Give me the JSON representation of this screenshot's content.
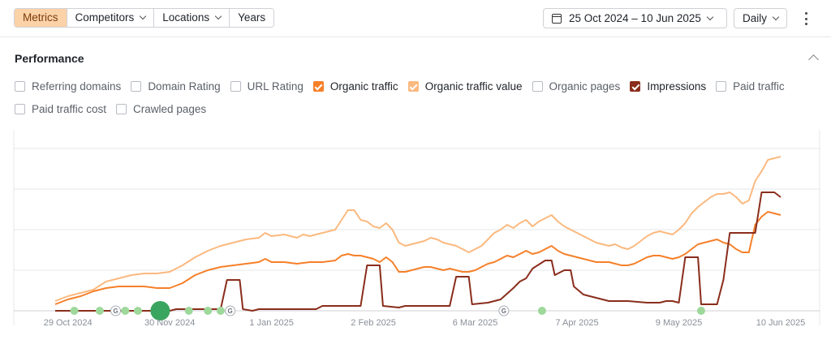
{
  "toolbar": {
    "tabs": [
      {
        "label": "Metrics",
        "active": true,
        "dropdown": false
      },
      {
        "label": "Competitors",
        "active": false,
        "dropdown": true
      },
      {
        "label": "Locations",
        "active": false,
        "dropdown": true
      },
      {
        "label": "Years",
        "active": false,
        "dropdown": false
      }
    ],
    "date_range": "25 Oct 2024 – 10 Jun 2025",
    "interval": "Daily"
  },
  "section_title": "Performance",
  "metrics": [
    {
      "label": "Referring domains",
      "checked": false,
      "color": ""
    },
    {
      "label": "Domain Rating",
      "checked": false,
      "color": ""
    },
    {
      "label": "URL Rating",
      "checked": false,
      "color": ""
    },
    {
      "label": "Organic traffic",
      "checked": true,
      "color": "#f5802a"
    },
    {
      "label": "Organic traffic value",
      "checked": true,
      "color": "#fbb97f"
    },
    {
      "label": "Organic pages",
      "checked": false,
      "color": ""
    },
    {
      "label": "Impressions",
      "checked": true,
      "color": "#8a2d1c"
    },
    {
      "label": "Paid traffic",
      "checked": false,
      "color": ""
    },
    {
      "label": "Paid traffic cost",
      "checked": false,
      "color": ""
    },
    {
      "label": "Crawled pages",
      "checked": false,
      "color": ""
    }
  ],
  "chart_data": {
    "type": "line",
    "x_tick_labels": [
      "29 Oct 2024",
      "30 Nov 2024",
      "1 Jan 2025",
      "2 Feb 2025",
      "6 Mar 2025",
      "7 Apr 2025",
      "9 May 2025",
      "10 Jun 2025"
    ],
    "x_tick_days": [
      4,
      36,
      68,
      100,
      132,
      164,
      196,
      228
    ],
    "x_range_days": [
      0,
      228
    ],
    "y_range": [
      0,
      100
    ],
    "grid": "horizontal",
    "y_ticks_labeled": false,
    "series": [
      {
        "name": "Organic traffic value",
        "color": "#fbb97f",
        "points": [
          [
            0,
            6
          ],
          [
            4,
            9
          ],
          [
            8,
            11
          ],
          [
            12,
            13
          ],
          [
            16,
            18
          ],
          [
            20,
            20
          ],
          [
            24,
            22
          ],
          [
            28,
            23
          ],
          [
            32,
            23
          ],
          [
            36,
            24
          ],
          [
            40,
            28
          ],
          [
            44,
            33
          ],
          [
            48,
            37
          ],
          [
            52,
            40
          ],
          [
            56,
            42
          ],
          [
            60,
            44
          ],
          [
            64,
            45
          ],
          [
            66,
            48
          ],
          [
            68,
            46
          ],
          [
            72,
            47
          ],
          [
            76,
            45
          ],
          [
            78,
            47
          ],
          [
            80,
            46
          ],
          [
            84,
            48
          ],
          [
            88,
            50
          ],
          [
            90,
            56
          ],
          [
            92,
            62
          ],
          [
            94,
            62
          ],
          [
            96,
            56
          ],
          [
            98,
            55
          ],
          [
            100,
            52
          ],
          [
            102,
            51
          ],
          [
            104,
            54
          ],
          [
            106,
            50
          ],
          [
            108,
            42
          ],
          [
            110,
            40
          ],
          [
            112,
            41
          ],
          [
            114,
            42
          ],
          [
            116,
            43
          ],
          [
            118,
            45
          ],
          [
            120,
            44
          ],
          [
            122,
            42
          ],
          [
            124,
            41
          ],
          [
            126,
            40
          ],
          [
            128,
            38
          ],
          [
            130,
            36
          ],
          [
            132,
            38
          ],
          [
            134,
            40
          ],
          [
            136,
            44
          ],
          [
            138,
            48
          ],
          [
            140,
            50
          ],
          [
            142,
            53
          ],
          [
            144,
            51
          ],
          [
            146,
            54
          ],
          [
            148,
            56
          ],
          [
            150,
            52
          ],
          [
            152,
            55
          ],
          [
            154,
            57
          ],
          [
            156,
            59
          ],
          [
            158,
            55
          ],
          [
            160,
            52
          ],
          [
            162,
            50
          ],
          [
            164,
            48
          ],
          [
            166,
            46
          ],
          [
            168,
            44
          ],
          [
            170,
            42
          ],
          [
            172,
            41
          ],
          [
            174,
            40
          ],
          [
            176,
            41
          ],
          [
            178,
            39
          ],
          [
            180,
            38
          ],
          [
            182,
            40
          ],
          [
            184,
            43
          ],
          [
            186,
            46
          ],
          [
            188,
            48
          ],
          [
            190,
            49
          ],
          [
            192,
            48
          ],
          [
            194,
            47
          ],
          [
            196,
            50
          ],
          [
            198,
            54
          ],
          [
            200,
            60
          ],
          [
            202,
            64
          ],
          [
            204,
            67
          ],
          [
            206,
            70
          ],
          [
            208,
            72
          ],
          [
            210,
            72
          ],
          [
            212,
            73
          ],
          [
            214,
            70
          ],
          [
            216,
            66
          ],
          [
            218,
            68
          ],
          [
            220,
            80
          ],
          [
            222,
            86
          ],
          [
            224,
            93
          ],
          [
            226,
            94
          ],
          [
            228,
            95
          ]
        ]
      },
      {
        "name": "Organic traffic",
        "color": "#f5802a",
        "points": [
          [
            0,
            4
          ],
          [
            4,
            7
          ],
          [
            8,
            9
          ],
          [
            12,
            12
          ],
          [
            16,
            14
          ],
          [
            20,
            15
          ],
          [
            24,
            15
          ],
          [
            28,
            15
          ],
          [
            32,
            14
          ],
          [
            36,
            14
          ],
          [
            40,
            17
          ],
          [
            44,
            22
          ],
          [
            48,
            25
          ],
          [
            52,
            27
          ],
          [
            56,
            28
          ],
          [
            60,
            29
          ],
          [
            64,
            30
          ],
          [
            66,
            32
          ],
          [
            68,
            30
          ],
          [
            72,
            30
          ],
          [
            76,
            29
          ],
          [
            80,
            30
          ],
          [
            84,
            30
          ],
          [
            88,
            31
          ],
          [
            90,
            34
          ],
          [
            92,
            35
          ],
          [
            94,
            34
          ],
          [
            96,
            34
          ],
          [
            98,
            33
          ],
          [
            100,
            32
          ],
          [
            102,
            30
          ],
          [
            104,
            33
          ],
          [
            106,
            30
          ],
          [
            108,
            24
          ],
          [
            110,
            24
          ],
          [
            112,
            25
          ],
          [
            114,
            26
          ],
          [
            116,
            27
          ],
          [
            118,
            27
          ],
          [
            120,
            26
          ],
          [
            122,
            25
          ],
          [
            124,
            26
          ],
          [
            126,
            25
          ],
          [
            128,
            24
          ],
          [
            130,
            24
          ],
          [
            132,
            25
          ],
          [
            134,
            27
          ],
          [
            136,
            29
          ],
          [
            138,
            30
          ],
          [
            140,
            32
          ],
          [
            142,
            34
          ],
          [
            144,
            33
          ],
          [
            146,
            35
          ],
          [
            148,
            37
          ],
          [
            150,
            35
          ],
          [
            152,
            36
          ],
          [
            154,
            38
          ],
          [
            156,
            40
          ],
          [
            158,
            37
          ],
          [
            160,
            35
          ],
          [
            162,
            34
          ],
          [
            164,
            33
          ],
          [
            166,
            32
          ],
          [
            168,
            31
          ],
          [
            170,
            30
          ],
          [
            172,
            30
          ],
          [
            174,
            30
          ],
          [
            176,
            29
          ],
          [
            178,
            28
          ],
          [
            180,
            28
          ],
          [
            182,
            29
          ],
          [
            184,
            31
          ],
          [
            186,
            33
          ],
          [
            188,
            34
          ],
          [
            190,
            34
          ],
          [
            192,
            33
          ],
          [
            194,
            32
          ],
          [
            196,
            33
          ],
          [
            198,
            35
          ],
          [
            200,
            38
          ],
          [
            202,
            41
          ],
          [
            204,
            42
          ],
          [
            206,
            43
          ],
          [
            208,
            44
          ],
          [
            210,
            42
          ],
          [
            212,
            41
          ],
          [
            214,
            38
          ],
          [
            216,
            36
          ],
          [
            218,
            36
          ],
          [
            220,
            53
          ],
          [
            222,
            58
          ],
          [
            224,
            61
          ],
          [
            226,
            60
          ],
          [
            228,
            59
          ]
        ]
      },
      {
        "name": "Impressions",
        "color": "#8a2d1c",
        "points": [
          [
            0,
            0
          ],
          [
            36,
            0
          ],
          [
            38,
            1
          ],
          [
            52,
            1
          ],
          [
            54,
            19
          ],
          [
            58,
            19
          ],
          [
            59,
            1
          ],
          [
            62,
            0
          ],
          [
            64,
            1
          ],
          [
            82,
            1
          ],
          [
            84,
            3
          ],
          [
            96,
            3
          ],
          [
            98,
            28
          ],
          [
            102,
            28
          ],
          [
            103,
            3
          ],
          [
            108,
            2
          ],
          [
            110,
            3
          ],
          [
            124,
            3
          ],
          [
            126,
            21
          ],
          [
            130,
            21
          ],
          [
            131,
            4
          ],
          [
            136,
            5
          ],
          [
            140,
            7
          ],
          [
            144,
            14
          ],
          [
            146,
            18
          ],
          [
            148,
            20
          ],
          [
            150,
            26
          ],
          [
            154,
            31
          ],
          [
            156,
            31
          ],
          [
            157,
            22
          ],
          [
            160,
            25
          ],
          [
            162,
            25
          ],
          [
            163,
            15
          ],
          [
            166,
            10
          ],
          [
            170,
            8
          ],
          [
            174,
            6
          ],
          [
            180,
            6
          ],
          [
            186,
            5
          ],
          [
            190,
            5
          ],
          [
            192,
            6
          ],
          [
            194,
            6
          ],
          [
            196,
            5
          ],
          [
            198,
            33
          ],
          [
            202,
            33
          ],
          [
            203,
            4
          ],
          [
            208,
            4
          ],
          [
            210,
            19
          ],
          [
            212,
            48
          ],
          [
            220,
            48
          ],
          [
            222,
            73
          ],
          [
            226,
            73
          ],
          [
            228,
            70
          ]
        ]
      }
    ],
    "annotations": {
      "green_dots_days": [
        6,
        14,
        22,
        26,
        42,
        48,
        52,
        153,
        203
      ],
      "big_green_dot_day": 33,
      "google_update_days": [
        19,
        55,
        141
      ]
    }
  }
}
